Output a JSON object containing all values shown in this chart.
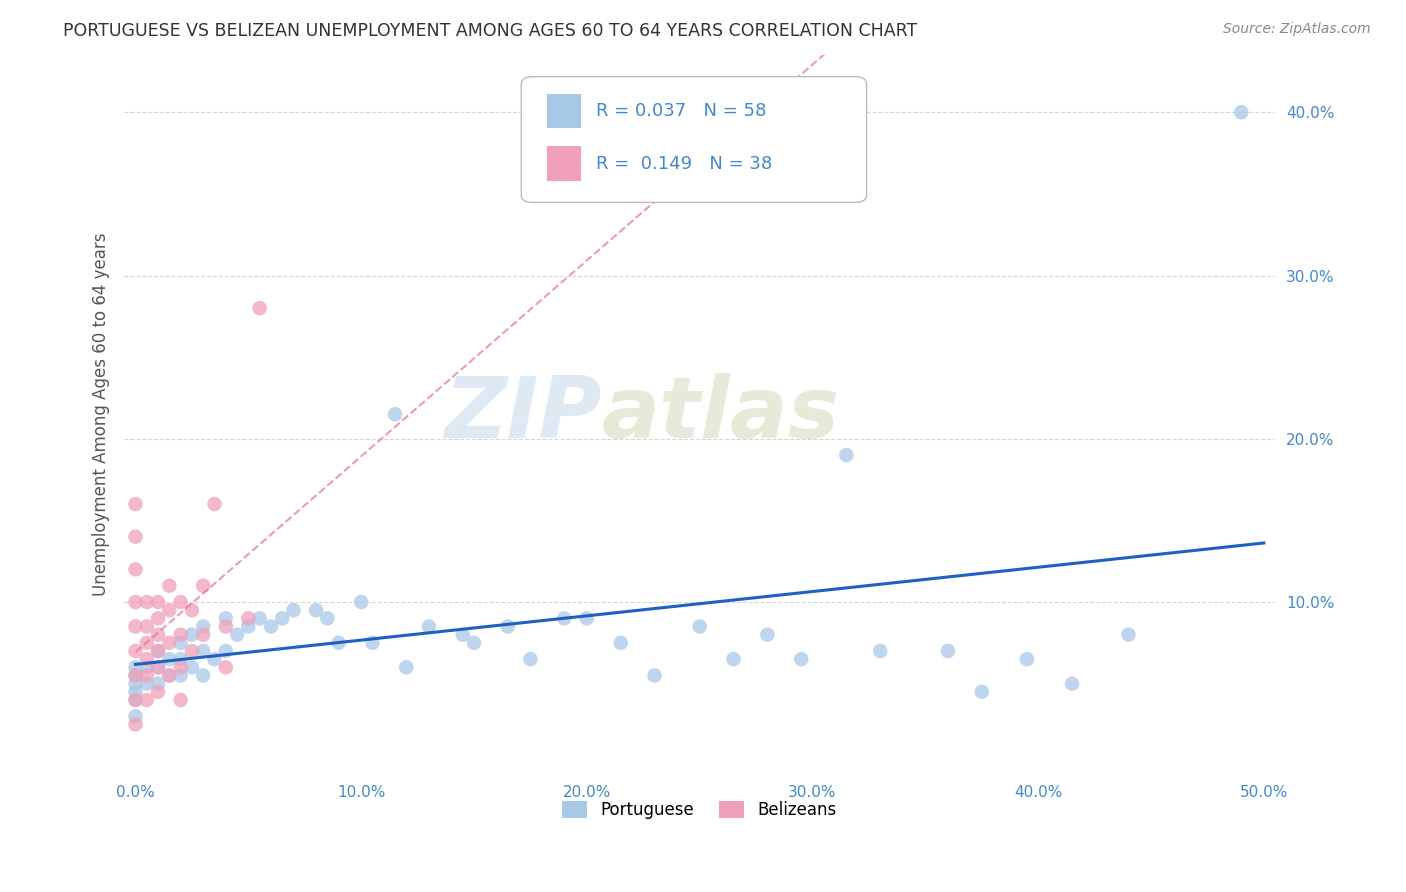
{
  "title": "PORTUGUESE VS BELIZEAN UNEMPLOYMENT AMONG AGES 60 TO 64 YEARS CORRELATION CHART",
  "source": "Source: ZipAtlas.com",
  "ylabel": "Unemployment Among Ages 60 to 64 years",
  "xlim": [
    -0.005,
    0.505
  ],
  "ylim": [
    -0.005,
    0.435
  ],
  "xticks": [
    0.0,
    0.1,
    0.2,
    0.3,
    0.4,
    0.5
  ],
  "xticklabels": [
    "0.0%",
    "10.0%",
    "20.0%",
    "30.0%",
    "40.0%",
    "50.0%"
  ],
  "yticks": [
    0.1,
    0.2,
    0.3,
    0.4
  ],
  "yticklabels": [
    "10.0%",
    "20.0%",
    "30.0%",
    "40.0%"
  ],
  "legend_r_portuguese": "0.037",
  "legend_n_portuguese": "58",
  "legend_r_belizean": "0.149",
  "legend_n_belizean": "38",
  "portuguese_color": "#a8c8e8",
  "belizean_color": "#f0a0b8",
  "portuguese_line_color": "#2060c0",
  "belizean_line_color": "#e87090",
  "watermark_zip": "ZIP",
  "watermark_atlas": "atlas",
  "background_color": "#ffffff",
  "grid_color": "#cccccc",
  "portuguese_x": [
    0.0,
    0.0,
    0.0,
    0.0,
    0.0,
    0.0,
    0.005,
    0.005,
    0.01,
    0.01,
    0.01,
    0.015,
    0.015,
    0.02,
    0.02,
    0.02,
    0.025,
    0.025,
    0.03,
    0.03,
    0.03,
    0.035,
    0.04,
    0.04,
    0.045,
    0.05,
    0.055,
    0.06,
    0.065,
    0.07,
    0.08,
    0.085,
    0.09,
    0.1,
    0.105,
    0.115,
    0.12,
    0.13,
    0.145,
    0.15,
    0.165,
    0.175,
    0.19,
    0.2,
    0.215,
    0.23,
    0.25,
    0.265,
    0.28,
    0.295,
    0.315,
    0.33,
    0.36,
    0.375,
    0.395,
    0.415,
    0.44,
    0.49
  ],
  "portuguese_y": [
    0.06,
    0.055,
    0.05,
    0.045,
    0.04,
    0.03,
    0.06,
    0.05,
    0.07,
    0.06,
    0.05,
    0.065,
    0.055,
    0.075,
    0.065,
    0.055,
    0.08,
    0.06,
    0.085,
    0.07,
    0.055,
    0.065,
    0.09,
    0.07,
    0.08,
    0.085,
    0.09,
    0.085,
    0.09,
    0.095,
    0.095,
    0.09,
    0.075,
    0.1,
    0.075,
    0.215,
    0.06,
    0.085,
    0.08,
    0.075,
    0.085,
    0.065,
    0.09,
    0.09,
    0.075,
    0.055,
    0.085,
    0.065,
    0.08,
    0.065,
    0.19,
    0.07,
    0.07,
    0.045,
    0.065,
    0.05,
    0.08,
    0.4
  ],
  "belizean_x": [
    0.0,
    0.0,
    0.0,
    0.0,
    0.0,
    0.0,
    0.0,
    0.0,
    0.0,
    0.005,
    0.005,
    0.005,
    0.005,
    0.005,
    0.005,
    0.01,
    0.01,
    0.01,
    0.01,
    0.01,
    0.01,
    0.015,
    0.015,
    0.015,
    0.015,
    0.02,
    0.02,
    0.02,
    0.02,
    0.025,
    0.025,
    0.03,
    0.03,
    0.035,
    0.04,
    0.04,
    0.05,
    0.055
  ],
  "belizean_y": [
    0.16,
    0.14,
    0.12,
    0.1,
    0.085,
    0.07,
    0.055,
    0.04,
    0.025,
    0.1,
    0.085,
    0.075,
    0.065,
    0.055,
    0.04,
    0.1,
    0.09,
    0.08,
    0.07,
    0.06,
    0.045,
    0.11,
    0.095,
    0.075,
    0.055,
    0.1,
    0.08,
    0.06,
    0.04,
    0.095,
    0.07,
    0.11,
    0.08,
    0.16,
    0.085,
    0.06,
    0.09,
    0.28
  ]
}
